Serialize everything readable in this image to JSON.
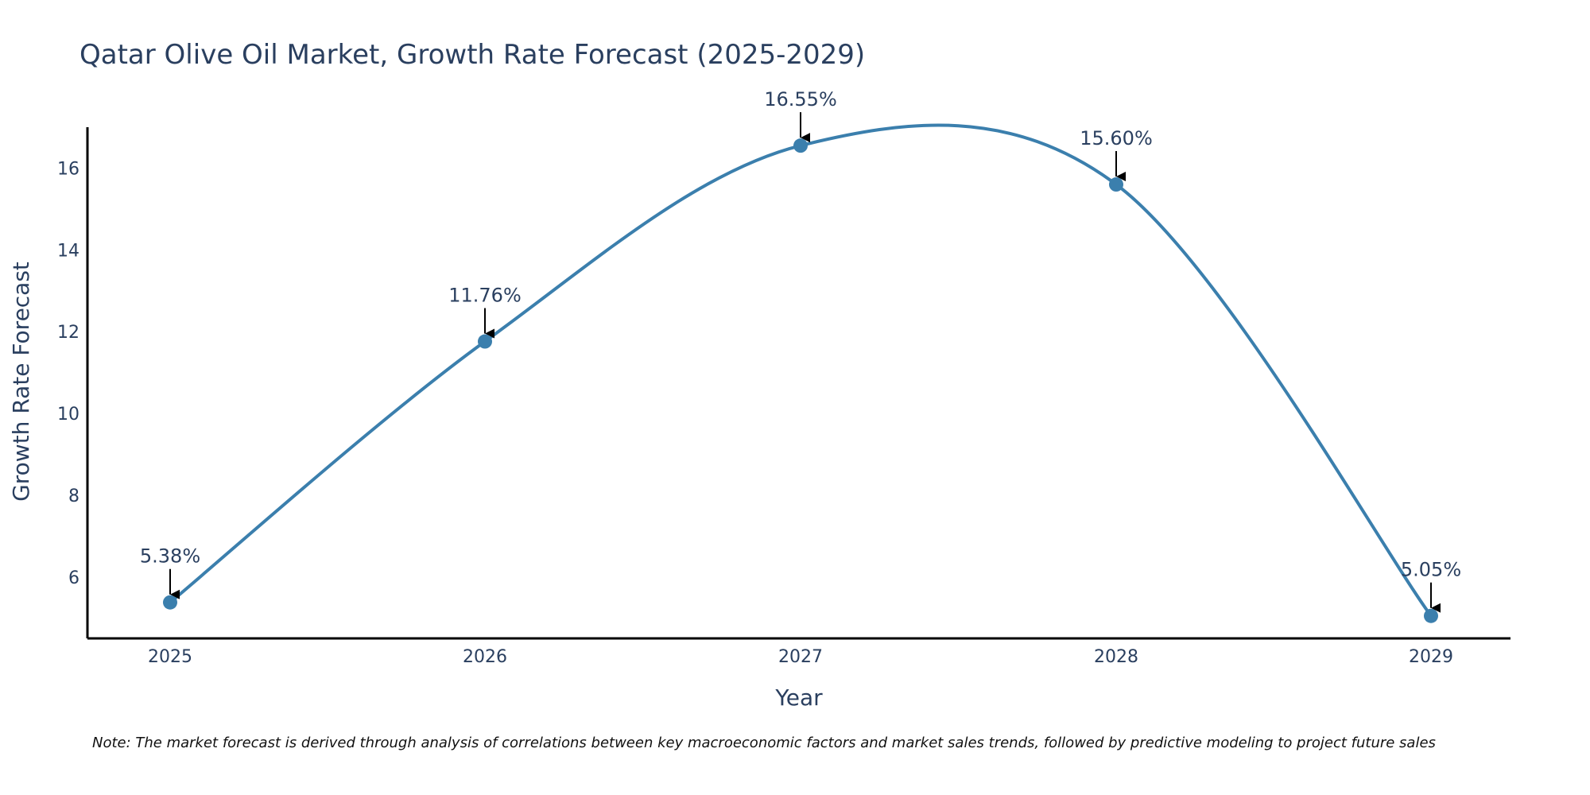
{
  "chart_data": {
    "type": "line",
    "title": "Qatar Olive Oil Market, Growth Rate Forecast (2025-2029)",
    "xlabel": "Year",
    "ylabel": "Growth Rate Forecast",
    "categories": [
      "2025",
      "2026",
      "2027",
      "2028",
      "2029"
    ],
    "series": [
      {
        "name": "Growth Rate Forecast",
        "values": [
          5.38,
          11.76,
          16.55,
          15.6,
          5.05
        ],
        "labels": [
          "5.38%",
          "11.76%",
          "16.55%",
          "15.60%",
          "5.05%"
        ]
      }
    ],
    "ylim": [
      4.5,
      17.0
    ],
    "yticks": [
      6,
      8,
      10,
      12,
      14,
      16
    ],
    "grid": false,
    "line_shape": "spline",
    "colors": {
      "line": "#3b7fad",
      "marker": "#3b7fad",
      "arrow": "#000000",
      "text": "#2a3f5f",
      "axis": "#000000"
    },
    "note": "Note: The market forecast is derived through analysis of correlations between key macroeconomic factors and market sales trends, followed by predictive modeling to project future sales"
  }
}
